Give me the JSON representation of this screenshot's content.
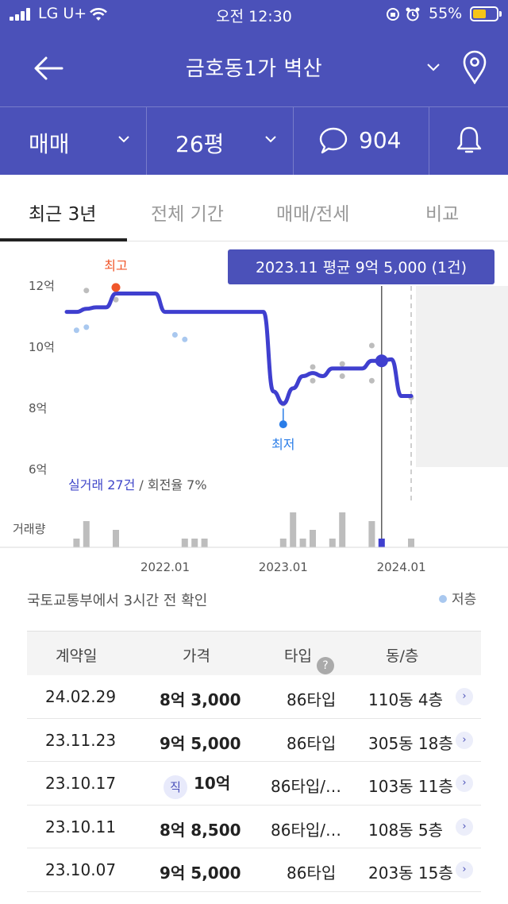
{
  "status": {
    "carrier": "LG U+",
    "time": "오전 12:30",
    "battery": "55%"
  },
  "nav": {
    "title": "금호동1가 벽산"
  },
  "filters": {
    "trade": "매매",
    "size": "26평",
    "comments": "904"
  },
  "tabs": [
    "최근 3년",
    "전체 기간",
    "매매/전세",
    "비교"
  ],
  "chart": {
    "tooltip": "2023.11 평균 9억 5,000 (1건)",
    "high_label": "최고",
    "low_label": "최저",
    "y_ticks": [
      "12억",
      "10억",
      "8억",
      "6억"
    ],
    "x_ticks": [
      "2022.01",
      "2023.01",
      "2024.01"
    ],
    "summary_count": "실거래 27건",
    "summary_rate": " / 회전율 7%",
    "volume_label": "거래량",
    "colors": {
      "line": "#3f3fcf",
      "high": "#f0562a",
      "low": "#2a7de8",
      "scatter": "#bdbdbd",
      "low_floor": "#a9c8ef",
      "volume": "#bdbdbd"
    }
  },
  "chart_data": {
    "type": "line",
    "title": "",
    "ylabel": "",
    "ylim": [
      6,
      12.5
    ],
    "y_unit": "억",
    "line": {
      "x": [
        "2021.03",
        "2021.04",
        "2021.05",
        "2021.06",
        "2021.07",
        "2021.08",
        "2021.09",
        "2021.10",
        "2021.11",
        "2021.12",
        "2022.01",
        "2022.02",
        "2022.03",
        "2022.04",
        "2022.05",
        "2022.06",
        "2022.07",
        "2022.08",
        "2022.09",
        "2022.10",
        "2022.11",
        "2022.12",
        "2023.01",
        "2023.02",
        "2023.03",
        "2023.04",
        "2023.05",
        "2023.06",
        "2023.07",
        "2023.08",
        "2023.09",
        "2023.10",
        "2023.11",
        "2023.12",
        "2024.01",
        "2024.02"
      ],
      "y": [
        11.1,
        11.1,
        11.2,
        11.25,
        11.25,
        11.7,
        11.7,
        11.7,
        11.7,
        11.7,
        11.1,
        11.1,
        11.1,
        11.1,
        11.1,
        11.1,
        11.1,
        11.1,
        11.1,
        11.1,
        11.1,
        8.5,
        8.1,
        8.6,
        9.0,
        9.1,
        9.0,
        9.25,
        9.25,
        9.25,
        9.25,
        9.5,
        9.5,
        9.55,
        8.35,
        8.35
      ]
    },
    "scatter": {
      "x": [
        "2021.04",
        "2021.05",
        "2021.05",
        "2021.08",
        "2021.08",
        "2022.02",
        "2022.03",
        "2023.01",
        "2023.04",
        "2023.04",
        "2023.07",
        "2023.07",
        "2023.10",
        "2023.10",
        "2023.11",
        "2024.02"
      ],
      "y": [
        10.5,
        11.8,
        10.6,
        11.5,
        11.9,
        10.35,
        10.2,
        8.1,
        9.3,
        8.85,
        9.4,
        9.0,
        10.0,
        8.85,
        9.5,
        8.3
      ],
      "low_floor": [
        true,
        false,
        true,
        false,
        false,
        true,
        true,
        false,
        false,
        false,
        false,
        false,
        false,
        false,
        false,
        false
      ]
    },
    "high": {
      "x": "2021.08",
      "y": 11.9
    },
    "low": {
      "x": "2023.01",
      "y": 8.1
    },
    "volume": {
      "x": [
        "2021.04",
        "2021.05",
        "2021.08",
        "2022.03",
        "2022.04",
        "2022.05",
        "2023.01",
        "2023.02",
        "2023.03",
        "2023.04",
        "2023.06",
        "2023.07",
        "2023.10",
        "2023.11",
        "2024.02"
      ],
      "count": [
        1,
        3,
        2,
        1,
        1,
        1,
        1,
        4,
        1,
        2,
        1,
        4,
        3,
        1,
        1
      ]
    },
    "highlight": {
      "x": "2023.11",
      "y": 9.5
    }
  },
  "table": {
    "source": "국토교통부에서 3시간 전 확인",
    "legend_low": "저층",
    "headers": {
      "date": "계약일",
      "price": "가격",
      "type": "타입",
      "dong": "동/층"
    },
    "direct_badge": "직",
    "rows": [
      {
        "date": "24.02.29",
        "price": "8억 3,000",
        "type": "86타입",
        "dong": "110동 4층",
        "direct": false
      },
      {
        "date": "23.11.23",
        "price": "9억 5,000",
        "type": "86타입",
        "dong": "305동 18층",
        "direct": false
      },
      {
        "date": "23.10.17",
        "price": "10억",
        "type": "86타입/…",
        "dong": "103동 11층",
        "direct": true
      },
      {
        "date": "23.10.11",
        "price": "8억 8,500",
        "type": "86타입/…",
        "dong": "108동 5층",
        "direct": false
      },
      {
        "date": "23.10.07",
        "price": "9억 5,000",
        "type": "86타입",
        "dong": "203동 15층",
        "direct": false
      }
    ]
  }
}
